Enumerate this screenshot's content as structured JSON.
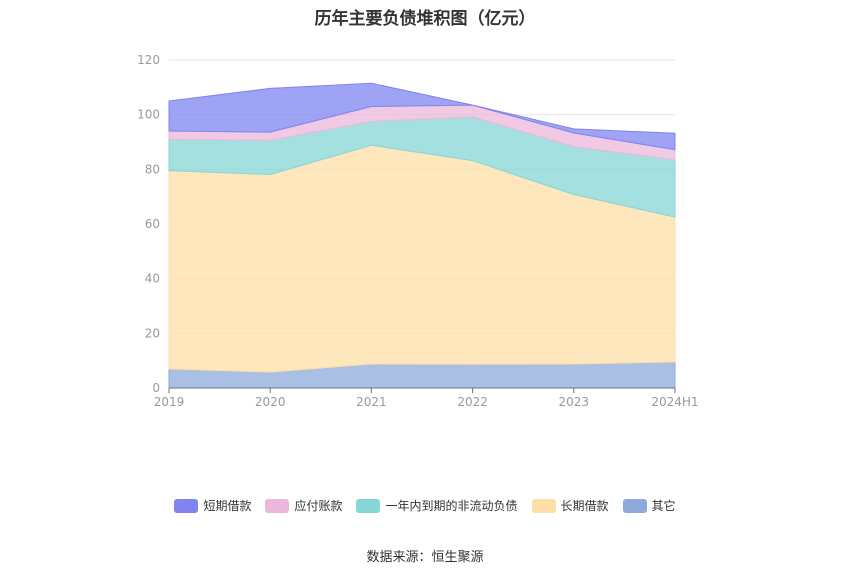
{
  "chart_data": {
    "type": "area",
    "stacked": true,
    "title": "历年主要负债堆积图（亿元）",
    "x": [
      "2019",
      "2020",
      "2021",
      "2022",
      "2023",
      "2024H1"
    ],
    "ylim": [
      0,
      120
    ],
    "yticks": [
      0,
      20,
      40,
      60,
      80,
      100,
      120
    ],
    "grid": true,
    "legend_position": "bottom",
    "series": [
      {
        "name": "其它",
        "values": [
          7,
          5.8,
          8.8,
          8.7,
          8.8,
          9.5
        ],
        "color": "#8eaadb"
      },
      {
        "name": "长期借款",
        "values": [
          72.5,
          72.3,
          80,
          74.5,
          62,
          53
        ],
        "color": "#fedfa6"
      },
      {
        "name": "一年内到期的非流动负债",
        "values": [
          11.5,
          12.5,
          8.7,
          16,
          17.5,
          21
        ],
        "color": "#86d6d6"
      },
      {
        "name": "应付账款",
        "values": [
          3,
          3,
          5.5,
          4.3,
          5,
          3.7
        ],
        "color": "#ebb8db"
      },
      {
        "name": "短期借款",
        "values": [
          11,
          16,
          8.5,
          0,
          1.5,
          6
        ],
        "color": "#7f84f0"
      }
    ],
    "legend_order": [
      "短期借款",
      "应付账款",
      "一年内到期的非流动负债",
      "长期借款",
      "其它"
    ]
  },
  "footer": {
    "source": "数据来源：恒生聚源"
  }
}
